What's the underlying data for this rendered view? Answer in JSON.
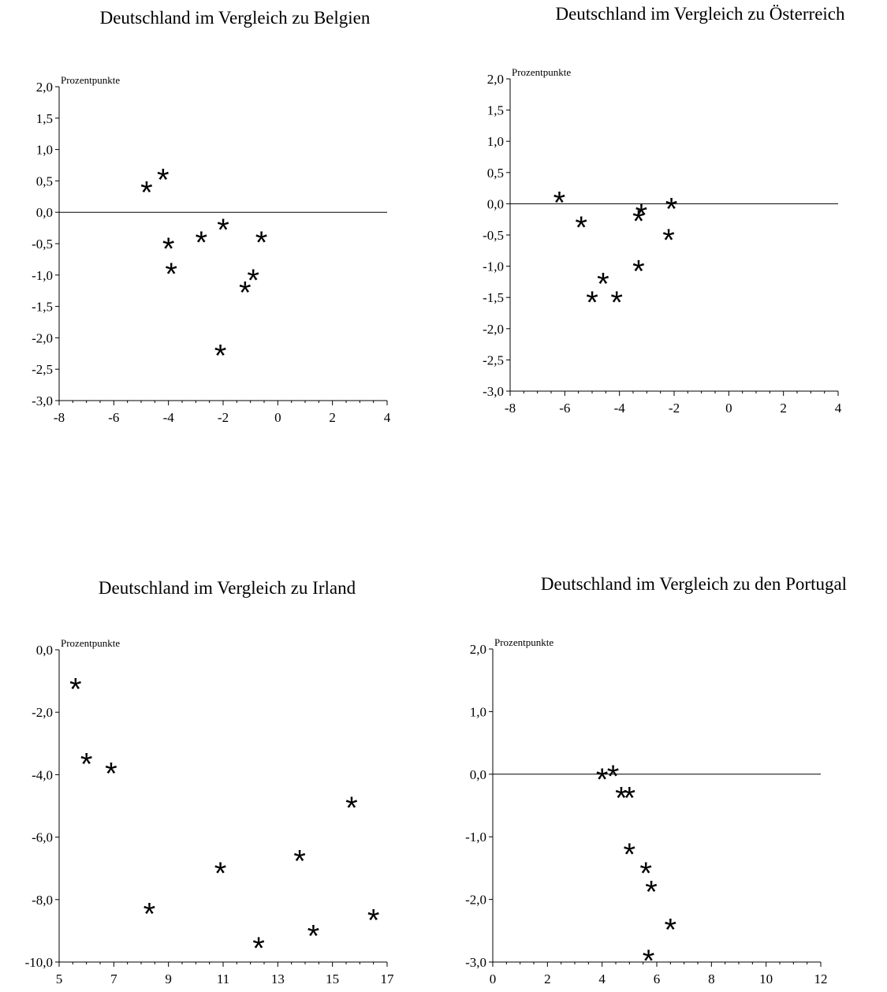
{
  "chart_data": [
    {
      "type": "scatter",
      "title": "Deutschland im Vergleich zu Belgien",
      "ylabel": "Prozentpunkte",
      "xlim": [
        -8,
        4
      ],
      "ylim": [
        -3.0,
        2.0
      ],
      "xticks": [
        "-8",
        "-6",
        "-4",
        "-2",
        "0",
        "2",
        "4"
      ],
      "yticks": [
        "2,0",
        "1,5",
        "1,0",
        "0,5",
        "0,0",
        "-0,5",
        "-1,0",
        "-1,5",
        "-2,0",
        "-2,5",
        "-3,0"
      ],
      "grid": false,
      "points": [
        {
          "x": -4.8,
          "y": 0.4
        },
        {
          "x": -4.2,
          "y": 0.6
        },
        {
          "x": -4.0,
          "y": -0.5
        },
        {
          "x": -3.9,
          "y": -0.9
        },
        {
          "x": -2.8,
          "y": -0.4
        },
        {
          "x": -2.0,
          "y": -0.2
        },
        {
          "x": -2.1,
          "y": -2.2
        },
        {
          "x": -1.2,
          "y": -1.2
        },
        {
          "x": -0.9,
          "y": -1.0
        },
        {
          "x": -0.6,
          "y": -0.4
        }
      ]
    },
    {
      "type": "scatter",
      "title": "Deutschland im Vergleich zu Österreich",
      "ylabel": "Prozentpunkte",
      "xlim": [
        -8,
        4
      ],
      "ylim": [
        -3.0,
        2.0
      ],
      "xticks": [
        "-8",
        "-6",
        "-4",
        "-2",
        "0",
        "2",
        "4"
      ],
      "yticks": [
        "2,0",
        "1,5",
        "1,0",
        "0,5",
        "0,0",
        "-0,5",
        "-1,0",
        "-1,5",
        "-2,0",
        "-2,5",
        "-3,0"
      ],
      "grid": false,
      "points": [
        {
          "x": -6.2,
          "y": 0.1
        },
        {
          "x": -5.4,
          "y": -0.3
        },
        {
          "x": -5.0,
          "y": -1.5
        },
        {
          "x": -4.6,
          "y": -1.2
        },
        {
          "x": -4.1,
          "y": -1.5
        },
        {
          "x": -3.3,
          "y": -1.0
        },
        {
          "x": -3.3,
          "y": -0.2
        },
        {
          "x": -3.2,
          "y": -0.1
        },
        {
          "x": -2.2,
          "y": -0.5
        },
        {
          "x": -2.1,
          "y": 0.0
        }
      ]
    },
    {
      "type": "scatter",
      "title": "Deutschland im Vergleich zu Irland",
      "ylabel": "Prozentpunkte",
      "xlim": [
        5,
        17
      ],
      "ylim": [
        -10.0,
        0.0
      ],
      "xticks": [
        "5",
        "7",
        "9",
        "11",
        "13",
        "15",
        "17"
      ],
      "yticks": [
        "0,0",
        "-2,0",
        "-4,0",
        "-6,0",
        "-8,0",
        "-10,0"
      ],
      "grid": false,
      "points": [
        {
          "x": 5.6,
          "y": -1.1
        },
        {
          "x": 6.0,
          "y": -3.5
        },
        {
          "x": 6.9,
          "y": -3.8
        },
        {
          "x": 8.3,
          "y": -8.3
        },
        {
          "x": 10.9,
          "y": -7.0
        },
        {
          "x": 12.3,
          "y": -9.4
        },
        {
          "x": 13.8,
          "y": -6.6
        },
        {
          "x": 14.3,
          "y": -9.0
        },
        {
          "x": 15.7,
          "y": -4.9
        },
        {
          "x": 16.5,
          "y": -8.5
        }
      ]
    },
    {
      "type": "scatter",
      "title": "Deutschland im Vergleich zu den Portugal",
      "ylabel": "Prozentpunkte",
      "xlim": [
        0,
        12
      ],
      "ylim": [
        -3.0,
        2.0
      ],
      "xticks": [
        "0",
        "2",
        "4",
        "6",
        "8",
        "10",
        "12"
      ],
      "yticks": [
        "2,0",
        "1,0",
        "0,0",
        "-1,0",
        "-2,0",
        "-3,0"
      ],
      "grid": false,
      "points": [
        {
          "x": 4.0,
          "y": 0.0
        },
        {
          "x": 4.4,
          "y": 0.05
        },
        {
          "x": 4.7,
          "y": -0.3
        },
        {
          "x": 5.0,
          "y": -0.3
        },
        {
          "x": 5.0,
          "y": -1.2
        },
        {
          "x": 5.6,
          "y": -1.5
        },
        {
          "x": 5.8,
          "y": -1.8
        },
        {
          "x": 6.5,
          "y": -2.4
        },
        {
          "x": 5.7,
          "y": -2.9
        }
      ]
    }
  ]
}
